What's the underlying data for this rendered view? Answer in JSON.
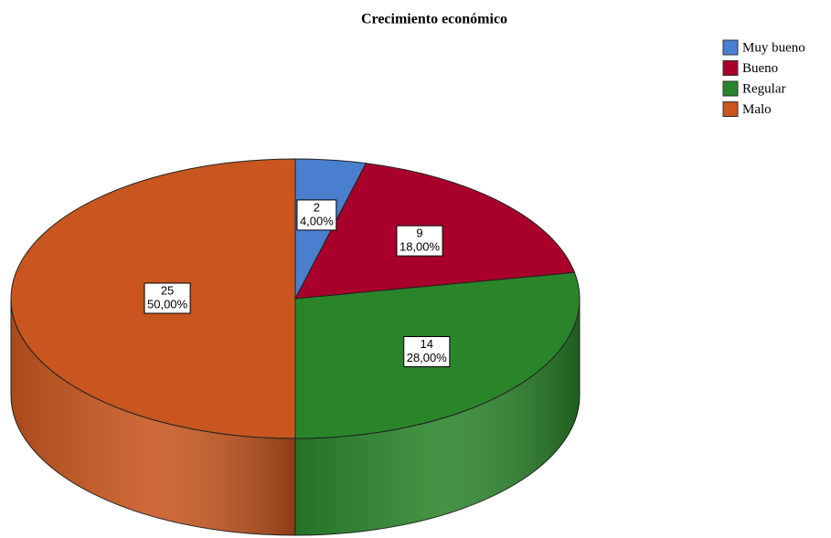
{
  "chart_data": {
    "type": "pie",
    "title": "Crecimiento económico",
    "categories": [
      "Muy bueno",
      "Bueno",
      "Regular",
      "Malo"
    ],
    "values": [
      2,
      9,
      14,
      25
    ],
    "percent_values": [
      4,
      18,
      28,
      50
    ],
    "percent_labels": [
      "4,00%",
      "18,00%",
      "28,00%",
      "50,00%"
    ],
    "colors": [
      "#4a7fd0",
      "#a8002a",
      "#2a852a",
      "#c8561e"
    ],
    "legend": "top-right"
  }
}
